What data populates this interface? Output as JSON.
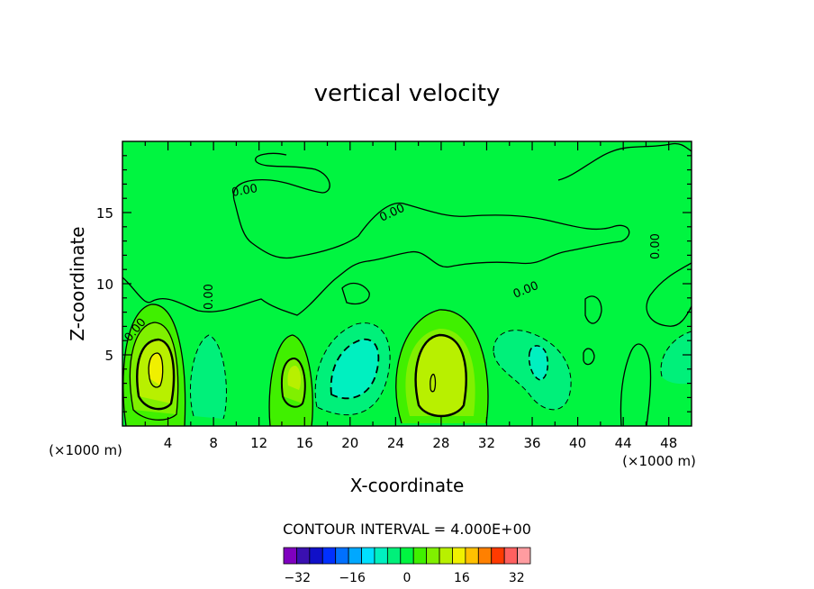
{
  "chart_data": {
    "type": "heatmap",
    "title": "vertical velocity",
    "xlabel": "X-coordinate",
    "ylabel": "Z-coordinate",
    "x_unit_left": "(×1000 m)",
    "x_unit_right": "(×1000 m)",
    "xlim": [
      0,
      50
    ],
    "ylim": [
      0,
      20
    ],
    "x_ticks": [
      4,
      8,
      12,
      16,
      20,
      24,
      28,
      32,
      36,
      40,
      44,
      48
    ],
    "y_ticks": [
      5,
      10,
      15
    ],
    "contour_interval_text": "CONTOUR INTERVAL = 4.000E+00",
    "contour_interval": 4,
    "zero_contour_labels": [
      "0.00",
      "0.00",
      "0.00",
      "0.00",
      "0.00"
    ],
    "colorbar": {
      "levels": [
        -36,
        -32,
        -28,
        -24,
        -20,
        -16,
        -12,
        -8,
        -4,
        0,
        4,
        8,
        12,
        16,
        20,
        24,
        28,
        32,
        36
      ],
      "colors": [
        "#7f00bf",
        "#3a10b0",
        "#1010c8",
        "#0030ff",
        "#0070ff",
        "#00a8ff",
        "#00e0ff",
        "#00f0c0",
        "#00f07a",
        "#00f540",
        "#40f000",
        "#80f000",
        "#b8f000",
        "#f0f000",
        "#ffc000",
        "#ff8000",
        "#ff3a00",
        "#ff6060",
        "#ff9ca0"
      ],
      "tick_labels": [
        "−32",
        "−16",
        "0",
        "16",
        "32"
      ],
      "tick_values": [
        -32,
        -16,
        0,
        16,
        32
      ]
    },
    "features": [
      {
        "kind": "updraft",
        "x": 3,
        "z": 4,
        "peak": 16
      },
      {
        "kind": "downdraft",
        "x": 8,
        "z": 3.5,
        "peak": -4
      },
      {
        "kind": "updraft",
        "x": 15,
        "z": 3.5,
        "peak": 12
      },
      {
        "kind": "downdraft",
        "x": 20.5,
        "z": 4,
        "peak": -8
      },
      {
        "kind": "updraft",
        "x": 28,
        "z": 4.5,
        "peak": 12
      },
      {
        "kind": "downdraft",
        "x": 36,
        "z": 4,
        "peak": -8
      },
      {
        "kind": "downdraft",
        "x": 47.5,
        "z": 5,
        "peak": -4
      }
    ]
  }
}
